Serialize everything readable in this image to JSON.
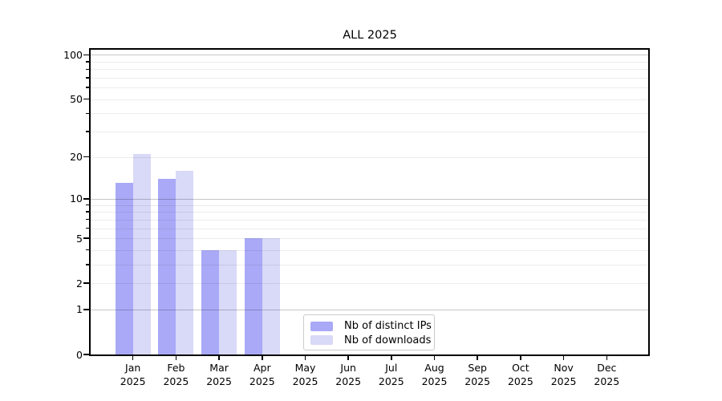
{
  "title": "ALL 2025",
  "chart_data": {
    "type": "bar",
    "title": "ALL 2025",
    "scale": "log1p",
    "ylim": [
      0,
      100
    ],
    "grid": true,
    "categories": [
      "Jan",
      "Feb",
      "Mar",
      "Apr",
      "May",
      "Jun",
      "Jul",
      "Aug",
      "Sep",
      "Oct",
      "Nov",
      "Dec"
    ],
    "category_year": "2025",
    "series": [
      {
        "name": "Nb of distinct IPs",
        "color": "#a9a9f7",
        "values": [
          13,
          14,
          4,
          5,
          0,
          0,
          0,
          0,
          0,
          0,
          0,
          0
        ]
      },
      {
        "name": "Nb of downloads",
        "color": "#d9d9f8",
        "values": [
          21,
          16,
          4,
          5,
          0,
          0,
          0,
          0,
          0,
          0,
          0,
          0
        ]
      }
    ],
    "y_ticks": [
      0,
      1,
      2,
      5,
      10,
      20,
      50,
      100
    ],
    "y_major_gridlines": [
      1,
      10,
      100
    ],
    "y_minor_gridlines": [
      2,
      3,
      4,
      5,
      6,
      7,
      8,
      9,
      20,
      30,
      40,
      50,
      60,
      70,
      80,
      90
    ],
    "legend_position": "lower-center",
    "colors": {
      "axis": "#000000",
      "major_grid": "#c7c7c7",
      "minor_grid": "#ececec"
    }
  },
  "legend": {
    "items": [
      {
        "label": "Nb of distinct IPs",
        "color": "#a9a9f7"
      },
      {
        "label": "Nb of downloads",
        "color": "#d9d9f8"
      }
    ]
  }
}
